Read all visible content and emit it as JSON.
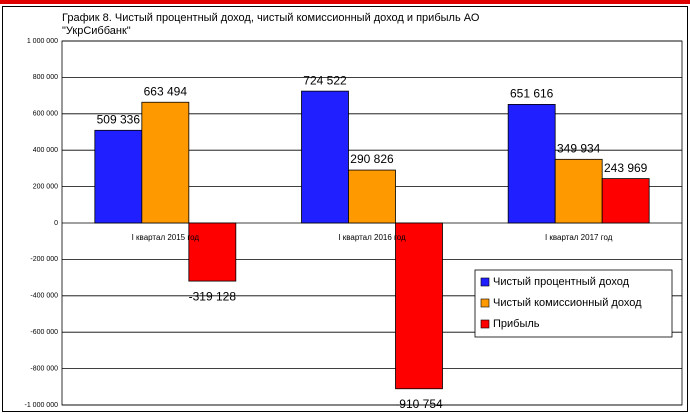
{
  "chart_data": {
    "type": "bar",
    "title": "График 8. Чистый процентный доход, чистый комиссионный доход и прибыль АО \"УкрСиббанк\"",
    "categories": [
      "I квартал 2015 год",
      "I квартал 2016 год",
      "I квартал 2017 год"
    ],
    "series": [
      {
        "name": "Чистый процентный доход",
        "color": "#1f1fff",
        "values": [
          509336,
          724522,
          651616
        ],
        "value_labels": [
          "509 336",
          "724 522",
          "651 616"
        ]
      },
      {
        "name": "Чистый комиссионный доход",
        "color": "#ff9900",
        "values": [
          663494,
          290826,
          349934
        ],
        "value_labels": [
          "663 494",
          "290 826",
          "349 934"
        ]
      },
      {
        "name": "Прибыль",
        "color": "#ff0000",
        "values": [
          -319128,
          -910754,
          243969
        ],
        "value_labels": [
          "-319 128",
          "-910 754",
          "243 969"
        ]
      }
    ],
    "ylim": [
      -1000000,
      1000000
    ],
    "yticks": [
      {
        "value": -1000000,
        "label": "-1 000 000"
      },
      {
        "value": -800000,
        "label": "-800 000"
      },
      {
        "value": -600000,
        "label": "-600 000"
      },
      {
        "value": -400000,
        "label": "-400 000"
      },
      {
        "value": -200000,
        "label": "-200 000"
      },
      0,
      {
        "value": 200000,
        "label": "200 000"
      },
      {
        "value": 400000,
        "label": "400 000"
      },
      {
        "value": 600000,
        "label": "600 000"
      },
      {
        "value": 800000,
        "label": "800 000"
      },
      {
        "value": 1000000,
        "label": "1 000 000"
      }
    ],
    "grid": true,
    "legend": "lower right"
  }
}
